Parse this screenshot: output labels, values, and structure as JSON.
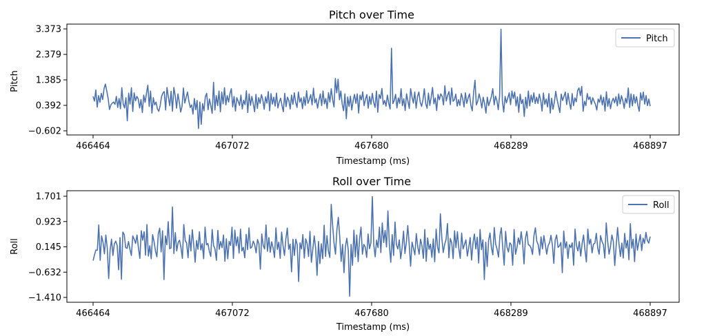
{
  "chart_data": [
    {
      "type": "line",
      "title": "Pitch over Time",
      "xlabel": "Timestamp (ms)",
      "ylabel": "Pitch",
      "xlim": [
        466464,
        468897
      ],
      "ylim": [
        -0.602,
        3.373
      ],
      "xticks": [
        "466464",
        "467072",
        "467680",
        "468289",
        "468897"
      ],
      "yticks": [
        "-0.602",
        "0.392",
        "1.385",
        "2.379",
        "3.373"
      ],
      "legend": "top-right",
      "grid": false,
      "color": "#4c72b0",
      "series": [
        {
          "name": "Pitch",
          "x_start": 466464,
          "x_end": 468897,
          "values": [
            0.74,
            0.56,
            0.99,
            0.32,
            0.77,
            0.51,
            0.86,
            0.62,
            1.04,
            1.22,
            0.95,
            0.66,
            0.23,
            0.41,
            0.48,
            0.52,
            0.43,
            0.74,
            0.31,
            0.66,
            0.26,
            1.08,
            0.44,
            0.29,
            0.69,
            -0.21,
            0.87,
            0.44,
            1.08,
            0.15,
            0.88,
            0.57,
            0.74,
            0.64,
            0.29,
            0.62,
            0.11,
            0.79,
            0.51,
            0.86,
            1.18,
            0.35,
            0.95,
            0.09,
            0.69,
            0.41,
            0.52,
            0.25,
            0.16,
            0.38,
            0.73,
            0.87,
            0.93,
            0.21,
            1.09,
            0.71,
            0.38,
            0.94,
            0.16,
            1.09,
            0.77,
            0.28,
            0.84,
            0.51,
            0.13,
            0.36,
            1.07,
            0.48,
            0.71,
            0.91,
            0.55,
            0.31,
            0.41,
            0.05,
            0.66,
            0.22,
            0.58,
            -0.51,
            0.52,
            -0.35,
            0.46,
            0.18,
            0.73,
            0.86,
            0.22,
            0.64,
            0.38,
            0.08,
            1.29,
            0.21,
            0.77,
            0.38,
            0.95,
            0.14,
            0.91,
            0.45,
            1.08,
            0.41,
            0.77,
            0.52,
            0.85,
            1.04,
            0.33,
            0.74,
            0.17,
            0.69,
            0.55,
            0.39,
            0.79,
            0.25,
            0.59,
            0.42,
            0.96,
            0.11,
            0.84,
            0.39,
            0.74,
            0.46,
            0.14,
            0.82,
            0.27,
            0.69,
            0.47,
            0.81,
            0.61,
            0.24,
            0.72,
            0.48,
            0.93,
            0.18,
            0.85,
            0.44,
            0.71,
            0.36,
            0.87,
            0.29,
            0.52,
            0.67,
            0.39,
            0.14,
            0.86,
            0.34,
            0.71,
            0.58,
            0.25,
            0.79,
            0.43,
            0.88,
            0.51,
            0.31,
            0.91,
            0.52,
            0.68,
            0.26,
            0.72,
            0.39,
            0.96,
            0.47,
            0.62,
            0.81,
            0.41,
            1.06,
            0.49,
            0.65,
            0.28,
            0.59,
            0.84,
            0.38,
            0.95,
            0.45,
            0.66,
            0.27,
            0.89,
            0.52,
            1.04,
            0.61,
            0.33,
            1.44,
            0.88,
            1.41,
            0.61,
            0.95,
            0.44,
            0.18,
            0.84,
            -0.13,
            0.72,
            0.35,
            0.75,
            0.21,
            0.58,
            0.82,
            0.47,
            0.84,
            0.09,
            0.79,
            0.61,
            0.92,
            0.38,
            0.63,
            0.81,
            0.28,
            0.74,
            0.43,
            0.86,
            0.51,
            0.31,
            0.95,
            0.12,
            0.81,
            0.66,
            1.05,
            0.43,
            0.58,
            0.36,
            0.79,
            0.47,
            0.25,
            2.62,
            0.46,
            0.58,
            0.82,
            0.29,
            0.68,
            0.47,
            1.04,
            0.38,
            0.65,
            0.19,
            0.84,
            0.56,
            0.27,
            1.04,
            0.72,
            0.48,
            0.91,
            0.28,
            0.73,
            0.91,
            0.51,
            0.35,
            0.61,
            1.04,
            0.46,
            0.28,
            0.87,
            0.39,
            0.71,
            1.09,
            0.45,
            0.68,
            0.19,
            0.82,
            0.61,
            0.84,
            0.74,
            0.41,
            1.16,
            0.56,
            0.78,
            0.93,
            0.42,
            1.07,
            0.55,
            0.61,
            0.83,
            0.36,
            0.61,
            0.39,
            0.85,
            0.66,
            0.33,
            0.88,
            0.47,
            0.68,
            0.84,
            0.39,
            0.18,
            0.89,
            1.37,
            0.41,
            0.55,
            0.84,
            0.62,
            0.29,
            0.71,
            0.47,
            0.09,
            0.71,
            0.38,
            0.55,
            0.74,
            1.04,
            0.41,
            0.75,
            0.58,
            0.22,
            0.78,
            3.36,
            0.57,
            0.13,
            0.74,
            0.49,
            0.69,
            0.88,
            0.42,
            0.95,
            0.66,
            0.91,
            0.37,
            0.72,
            0.12,
            0.83,
            0.46,
            0.62,
            -0.04,
            0.71,
            0.28,
            0.95,
            0.37,
            0.79,
            0.52,
            0.88,
            0.46,
            0.71,
            0.47,
            0.83,
            0.59,
            0.17,
            0.87,
            0.43,
            0.64,
            0.33,
            0.85,
            0.09,
            0.67,
            0.24,
            0.52,
            0.94,
            0.61,
            0.37,
            0.11,
            0.83,
            0.58,
            0.74,
            0.91,
            0.42,
            0.86,
            0.51,
            0.24,
            0.85,
            0.38,
            0.68,
            0.53,
            0.97,
            1.07,
            0.77,
            1.13,
            0.16,
            0.55,
            0.38,
            0.85,
            0.62,
            0.72,
            0.43,
            0.69,
            0.55,
            0.43,
            0.21,
            0.64,
            0.51,
            0.79,
            0.41,
            0.71,
            0.17,
            0.92,
            0.35,
            0.66,
            0.26,
            0.54,
            0.67,
            0.49,
            0.73,
            0.37,
            0.84,
            0.45,
            0.77,
            0.58,
            0.28,
            0.67,
            0.48,
            1.07,
            0.31,
            0.84,
            0.37,
            0.81,
            0.48,
            0.73,
            0.39,
            0.16,
            0.88,
            0.59,
            0.91,
            0.44,
            0.77,
            0.38,
            0.64,
            0.36
          ]
        }
      ]
    },
    {
      "type": "line",
      "title": "Roll over Time",
      "xlabel": "Timestamp (ms)",
      "ylabel": "Roll",
      "xlim": [
        466464,
        468897
      ],
      "ylim": [
        -1.41,
        1.701
      ],
      "xticks": [
        "466464",
        "467072",
        "467680",
        "468289",
        "468897"
      ],
      "yticks": [
        "-1.410",
        "-0.632",
        "0.145",
        "0.923",
        "1.701"
      ],
      "legend": "top-right",
      "grid": false,
      "color": "#4c72b0",
      "series": [
        {
          "name": "Roll",
          "x_start": 466464,
          "x_end": 468897,
          "values": [
            -0.28,
            -0.1,
            0.05,
            0.04,
            0.82,
            -0.27,
            0.48,
            0.29,
            -0.07,
            0.51,
            0.11,
            -0.83,
            0.04,
            0.38,
            -0.12,
            0.24,
            0.32,
            0.19,
            -0.56,
            0.43,
            -0.85,
            0.6,
            0.52,
            0.12,
            0.1,
            0.31,
            0.07,
            -0.12,
            0.48,
            0.38,
            0.25,
            0.51,
            0.11,
            -0.21,
            0.64,
            0.35,
            0.61,
            -0.11,
            0.83,
            -0.14,
            0.18,
            -0.22,
            0.52,
            0.31,
            0.02,
            -0.16,
            0.55,
            0.72,
            -0.01,
            0.64,
            -0.86,
            0.48,
            0.21,
            0.92,
            0.09,
            0.11,
            1.37,
            -0.06,
            0.58,
            0.02,
            0.28,
            0.35,
            0.12,
            -0.21,
            0.83,
            0.34,
            0.26,
            -0.19,
            0.51,
            0.02,
            0.67,
            0.21,
            -0.33,
            0.34,
            0.07,
            0.61,
            0.05,
            0.24,
            -0.22,
            0.75,
            0.21,
            0.25,
            0.01,
            -0.15,
            0.68,
            0.19,
            0.08,
            -0.27,
            0.65,
            0.07,
            0.31,
            0.12,
            0.51,
            -0.3,
            0.39,
            -0.22,
            0.31,
            0.19,
            0.75,
            -0.21,
            0.66,
            0.18,
            0.45,
            -0.05,
            0.69,
            0.02,
            0.13,
            -0.19,
            0.53,
            0.06,
            0.73,
            0.1,
            0.14,
            0.32,
            0.21,
            -0.04,
            0.37,
            0.24,
            -0.54,
            0.54,
            0.19,
            0.08,
            0.82,
            0.01,
            0.43,
            -0.02,
            0.3,
            0.11,
            -0.18,
            0.73,
            0.07,
            0.29,
            -0.21,
            0.6,
            0.18,
            -0.12,
            0.39,
            0.72,
            0.07,
            0.23,
            -0.62,
            0.38,
            -0.12,
            0.38,
            0.21,
            -0.92,
            0.27,
            0.08,
            0.52,
            -0.2,
            0.39,
            0.25,
            -0.15,
            0.62,
            -0.33,
            0.07,
            0.48,
            0.1,
            -0.73,
            0.31,
            -0.37,
            0.24,
            -0.22,
            0.81,
            -0.15,
            0.49,
            0.02,
            -0.18,
            1.45,
            0.8,
            0.25,
            -0.08,
            0.67,
            1.05,
            0.45,
            -0.3,
            0.22,
            -0.65,
            0.15,
            0.41,
            0.05,
            -1.37,
            0.22,
            -0.42,
            0.66,
            -0.16,
            0.51,
            -0.31,
            0.4,
            0.75,
            -0.08,
            0.22,
            0.14,
            -0.18,
            0.54,
            0.09,
            0.27,
            1.69,
            0.21,
            -0.16,
            0.35,
            0.12,
            0.75,
            -0.03,
            0.88,
            0.28,
            0.65,
            0.14,
            1.25,
            0.21,
            -0.33,
            0.52,
            -0.12,
            0.91,
            0.21,
            0.08,
            0.36,
            -0.22,
            0.12,
            0.63,
            -0.06,
            0.29,
            0.8,
            0.22,
            -0.45,
            0.29,
            0.1,
            -0.1,
            0.55,
            0.16,
            -0.08,
            0.38,
            0.18,
            -0.21,
            0.68,
            -0.3,
            0.42,
            0.07,
            0.23,
            -0.18,
            0.39,
            -0.31,
            0.69,
            0.14,
            -0.04,
            1.16,
            0.43,
            -0.03,
            0.22,
            0.37,
            0.86,
            -0.19,
            0.4,
            0.27,
            -0.22,
            0.64,
            0.12,
            0.61,
            0.09,
            -0.21,
            0.57,
            0.08,
            0.22,
            0.36,
            -0.14,
            0.12,
            0.43,
            -0.26,
            0.26,
            0.54,
            0.08,
            0.44,
            -0.35,
            0.68,
            0.06,
            0.36,
            -0.86,
            0.29,
            -0.46,
            0.34,
            0.57,
            0.12,
            -0.1,
            0.74,
            0.23,
            0.07,
            -0.17,
            0.49,
            0.73,
            0.11,
            -0.42,
            0.62,
            0.13,
            -0.01,
            0.27,
            0.21,
            -0.42,
            0.68,
            -0.08,
            0.12,
            0.42,
            0.22,
            0.61,
            0.26,
            -0.38,
            0.41,
            0.62,
            0.21,
            0.19,
            0.11,
            -0.09,
            0.49,
            0.73,
            0.32,
            0.21,
            -0.11,
            0.45,
            0.08,
            0.49,
            0.22,
            -0.08,
            0.18,
            0.27,
            0.5,
            0.21,
            -0.36,
            0.36,
            0.51,
            0.13,
            0.17,
            0.28,
            -0.65,
            0.63,
            0.11,
            0.3,
            -0.21,
            0.21,
            0.12,
            0.27,
            -0.42,
            0.69,
            0.18,
            0.02,
            0.31,
            -0.14,
            0.25,
            0.51,
            0.04,
            -0.32,
            0.69,
            0.23,
            0.38,
            -0.04,
            0.23,
            0.26,
            0.56,
            0.11,
            -0.08,
            0.49,
            0.31,
            0.21,
            -0.2,
            0.88,
            0.31,
            -0.08,
            0.16,
            0.51,
            0.31,
            -0.43,
            0.18,
            0.74,
            0.23,
            -0.15,
            0.26,
            -0.2,
            0.56,
            0.11,
            0.34,
            -0.25,
            0.86,
            0.11,
            0.38,
            -0.31,
            0.54,
            0.04,
            0.29,
            0.52,
            0.03,
            0.41,
            0.25,
            0.59,
            0.34,
            0.26,
            0.46
          ]
        }
      ]
    }
  ]
}
